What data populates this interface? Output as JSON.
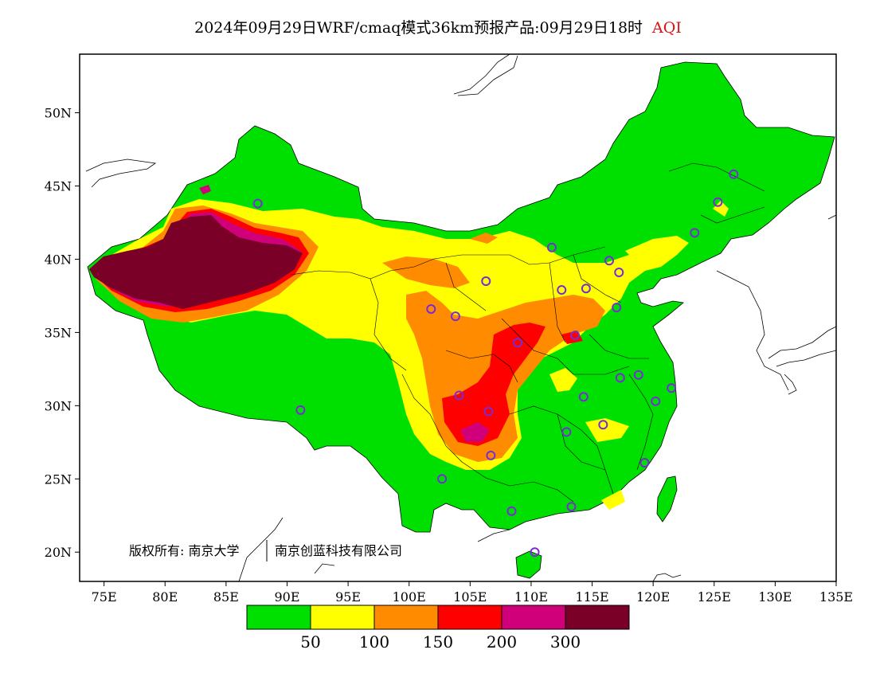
{
  "title": {
    "text": "2024年09月29日WRF/cmaq模式36km预报产品:09月29日18时",
    "variable": "AQI",
    "variable_color": "#e01010"
  },
  "map": {
    "lon_range": [
      73,
      135
    ],
    "lat_range": [
      18,
      54
    ],
    "lon_ticks": [
      {
        "value": 75,
        "label": "75E"
      },
      {
        "value": 80,
        "label": "80E"
      },
      {
        "value": 85,
        "label": "85E"
      },
      {
        "value": 90,
        "label": "90E"
      },
      {
        "value": 95,
        "label": "95E"
      },
      {
        "value": 100,
        "label": "100E"
      },
      {
        "value": 105,
        "label": "105E"
      },
      {
        "value": 110,
        "label": "110E"
      },
      {
        "value": 115,
        "label": "115E"
      },
      {
        "value": 120,
        "label": "120E"
      },
      {
        "value": 125,
        "label": "125E"
      },
      {
        "value": 130,
        "label": "130E"
      },
      {
        "value": 135,
        "label": "135E"
      }
    ],
    "lat_ticks": [
      {
        "value": 20,
        "label": "20N"
      },
      {
        "value": 25,
        "label": "25N"
      },
      {
        "value": 30,
        "label": "30N"
      },
      {
        "value": 35,
        "label": "35N"
      },
      {
        "value": 40,
        "label": "40N"
      },
      {
        "value": 45,
        "label": "45N"
      },
      {
        "value": 50,
        "label": "50N"
      }
    ],
    "copyright": "版权所有: 南京大学",
    "copyright2": "南京创蓝科技有限公司"
  },
  "legend": {
    "colors": [
      "#00e000",
      "#ffff00",
      "#ff8c00",
      "#ff0000",
      "#d0007a",
      "#7a0028"
    ],
    "labels": [
      "50",
      "100",
      "150",
      "200",
      "300"
    ]
  },
  "stations": [
    {
      "lon": 87.6,
      "lat": 43.8
    },
    {
      "lon": 91.1,
      "lat": 29.7
    },
    {
      "lon": 101.8,
      "lat": 36.6
    },
    {
      "lon": 103.8,
      "lat": 36.1
    },
    {
      "lon": 106.3,
      "lat": 38.5
    },
    {
      "lon": 111.7,
      "lat": 40.8
    },
    {
      "lon": 112.5,
      "lat": 37.9
    },
    {
      "lon": 114.5,
      "lat": 38.0
    },
    {
      "lon": 116.4,
      "lat": 39.9
    },
    {
      "lon": 117.2,
      "lat": 39.1
    },
    {
      "lon": 117.0,
      "lat": 36.7
    },
    {
      "lon": 113.6,
      "lat": 34.8
    },
    {
      "lon": 108.9,
      "lat": 34.3
    },
    {
      "lon": 117.3,
      "lat": 31.9
    },
    {
      "lon": 118.8,
      "lat": 32.1
    },
    {
      "lon": 121.5,
      "lat": 31.2
    },
    {
      "lon": 120.2,
      "lat": 30.3
    },
    {
      "lon": 114.3,
      "lat": 30.6
    },
    {
      "lon": 112.9,
      "lat": 28.2
    },
    {
      "lon": 115.9,
      "lat": 28.7
    },
    {
      "lon": 119.3,
      "lat": 26.1
    },
    {
      "lon": 113.3,
      "lat": 23.1
    },
    {
      "lon": 108.4,
      "lat": 22.8
    },
    {
      "lon": 110.3,
      "lat": 20.0
    },
    {
      "lon": 102.7,
      "lat": 25.0
    },
    {
      "lon": 106.7,
      "lat": 26.6
    },
    {
      "lon": 104.1,
      "lat": 30.7
    },
    {
      "lon": 106.5,
      "lat": 29.6
    },
    {
      "lon": 123.4,
      "lat": 41.8
    },
    {
      "lon": 125.3,
      "lat": 43.9
    },
    {
      "lon": 126.6,
      "lat": 45.8
    }
  ]
}
